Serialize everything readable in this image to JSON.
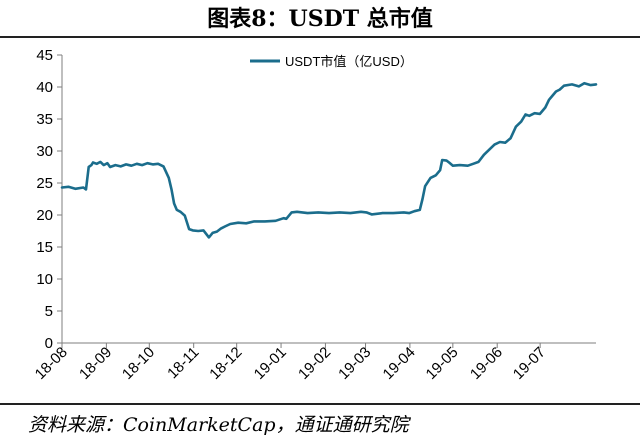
{
  "figure": {
    "title": "图表8：USDT 总市值",
    "source": "资料来源：CoinMarketCap，通证通研究院"
  },
  "colors": {
    "line": "#1b6d8c",
    "axis": "#7f7f7f",
    "text": "#000000"
  },
  "chart_data": {
    "type": "line",
    "title": "图表8：USDT 总市值",
    "legend_position": "top-center",
    "grid": false,
    "xlabel": "",
    "ylabel": "",
    "ylim": [
      0,
      45
    ],
    "yticks": [
      0,
      5,
      10,
      15,
      20,
      25,
      30,
      35,
      40,
      45
    ],
    "xlim": [
      0,
      1
    ],
    "xticks": [
      {
        "label": "18-08",
        "x": 0
      },
      {
        "label": "18-09",
        "x": 0.0831
      },
      {
        "label": "18-10",
        "x": 0.1635
      },
      {
        "label": "18-11",
        "x": 0.2466
      },
      {
        "label": "18-12",
        "x": 0.3271
      },
      {
        "label": "19-01",
        "x": 0.4102
      },
      {
        "label": "19-02",
        "x": 0.4933
      },
      {
        "label": "19-03",
        "x": 0.5684
      },
      {
        "label": "19-04",
        "x": 0.6515
      },
      {
        "label": "19-05",
        "x": 0.7319
      },
      {
        "label": "19-06",
        "x": 0.815
      },
      {
        "label": "19-07",
        "x": 0.8954
      }
    ],
    "series": [
      {
        "name": "USDT市值（亿USD）",
        "color": "#1b6d8c",
        "points": [
          [
            0.0,
            24.3
          ],
          [
            0.012,
            24.4
          ],
          [
            0.025,
            24.1
          ],
          [
            0.04,
            24.3
          ],
          [
            0.045,
            24.0
          ],
          [
            0.05,
            27.5
          ],
          [
            0.055,
            27.8
          ],
          [
            0.058,
            28.2
          ],
          [
            0.065,
            28.0
          ],
          [
            0.072,
            28.3
          ],
          [
            0.078,
            27.8
          ],
          [
            0.085,
            28.1
          ],
          [
            0.09,
            27.5
          ],
          [
            0.1,
            27.8
          ],
          [
            0.11,
            27.6
          ],
          [
            0.12,
            27.9
          ],
          [
            0.13,
            27.7
          ],
          [
            0.14,
            28.0
          ],
          [
            0.15,
            27.8
          ],
          [
            0.16,
            28.1
          ],
          [
            0.17,
            27.9
          ],
          [
            0.18,
            28.0
          ],
          [
            0.19,
            27.6
          ],
          [
            0.2,
            25.8
          ],
          [
            0.205,
            24.0
          ],
          [
            0.21,
            21.8
          ],
          [
            0.215,
            20.8
          ],
          [
            0.222,
            20.5
          ],
          [
            0.23,
            19.9
          ],
          [
            0.238,
            17.8
          ],
          [
            0.245,
            17.6
          ],
          [
            0.255,
            17.5
          ],
          [
            0.265,
            17.6
          ],
          [
            0.275,
            16.5
          ],
          [
            0.282,
            17.2
          ],
          [
            0.29,
            17.4
          ],
          [
            0.298,
            17.9
          ],
          [
            0.305,
            18.2
          ],
          [
            0.315,
            18.6
          ],
          [
            0.33,
            18.8
          ],
          [
            0.345,
            18.7
          ],
          [
            0.36,
            19.0
          ],
          [
            0.38,
            19.0
          ],
          [
            0.4,
            19.1
          ],
          [
            0.415,
            19.5
          ],
          [
            0.42,
            19.4
          ],
          [
            0.43,
            20.4
          ],
          [
            0.44,
            20.5
          ],
          [
            0.46,
            20.3
          ],
          [
            0.48,
            20.4
          ],
          [
            0.5,
            20.3
          ],
          [
            0.52,
            20.4
          ],
          [
            0.54,
            20.3
          ],
          [
            0.56,
            20.5
          ],
          [
            0.57,
            20.4
          ],
          [
            0.58,
            20.1
          ],
          [
            0.6,
            20.3
          ],
          [
            0.62,
            20.3
          ],
          [
            0.64,
            20.4
          ],
          [
            0.65,
            20.3
          ],
          [
            0.66,
            20.6
          ],
          [
            0.67,
            20.8
          ],
          [
            0.675,
            22.5
          ],
          [
            0.68,
            24.5
          ],
          [
            0.69,
            25.8
          ],
          [
            0.7,
            26.2
          ],
          [
            0.708,
            27.0
          ],
          [
            0.712,
            28.6
          ],
          [
            0.72,
            28.5
          ],
          [
            0.725,
            28.2
          ],
          [
            0.732,
            27.7
          ],
          [
            0.745,
            27.8
          ],
          [
            0.76,
            27.7
          ],
          [
            0.77,
            28.0
          ],
          [
            0.78,
            28.3
          ],
          [
            0.79,
            29.4
          ],
          [
            0.8,
            30.2
          ],
          [
            0.81,
            31.0
          ],
          [
            0.82,
            31.4
          ],
          [
            0.83,
            31.3
          ],
          [
            0.84,
            32.0
          ],
          [
            0.85,
            33.8
          ],
          [
            0.86,
            34.6
          ],
          [
            0.868,
            35.7
          ],
          [
            0.875,
            35.5
          ],
          [
            0.885,
            35.9
          ],
          [
            0.895,
            35.8
          ],
          [
            0.905,
            36.8
          ],
          [
            0.912,
            38.0
          ],
          [
            0.918,
            38.6
          ],
          [
            0.925,
            39.3
          ],
          [
            0.932,
            39.6
          ],
          [
            0.94,
            40.2
          ],
          [
            0.955,
            40.4
          ],
          [
            0.968,
            40.1
          ],
          [
            0.978,
            40.6
          ],
          [
            0.99,
            40.3
          ],
          [
            1.0,
            40.4
          ]
        ]
      }
    ]
  }
}
